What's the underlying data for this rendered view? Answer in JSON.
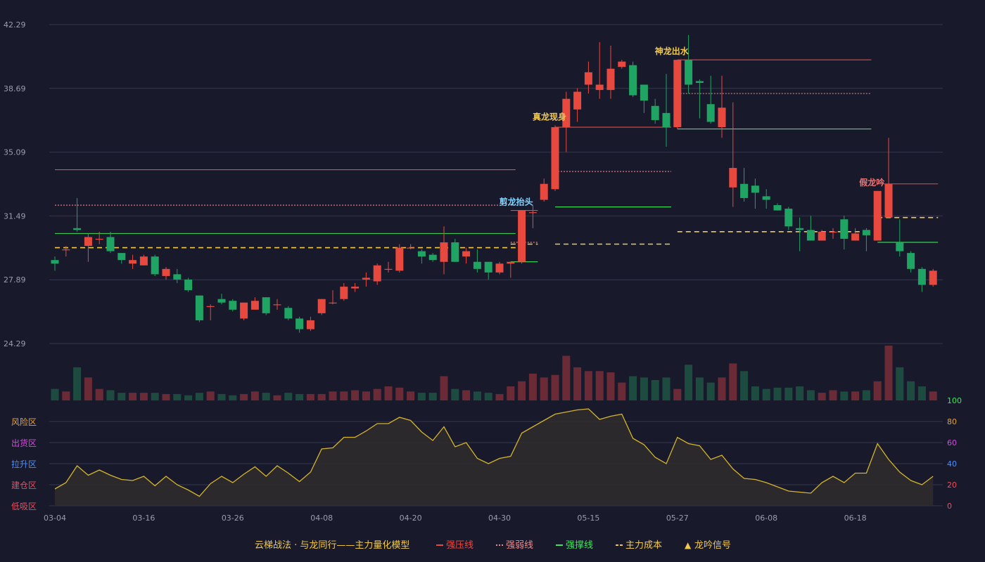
{
  "colors": {
    "background": "#181a2c",
    "up": "#e8493f",
    "down": "#1fa463",
    "up_volume": "#6b2b36",
    "down_volume": "#1e4b40",
    "grid": "#34374d",
    "axis_text": "#9a9db0",
    "resistance": "#e8493f",
    "weak": "#f08a8a",
    "support": "#3ee45a",
    "cost": "#f2c94c",
    "indicator": "#d4b52a",
    "indicator_fill": "#2f2b2c"
  },
  "legend": {
    "text": "云梯战法 · 与龙同行——主力量化模型",
    "items": [
      {
        "label": "强压线",
        "color": "#e8493f",
        "style": "solid"
      },
      {
        "label": "强弱线",
        "color": "#f08a8a",
        "style": "dotted"
      },
      {
        "label": "强撑线",
        "color": "#3ee45a",
        "style": "solid"
      },
      {
        "label": "主力成本",
        "color": "#f2c94c",
        "style": "dashed"
      },
      {
        "label": "龙吟信号",
        "color": "#f2c94c",
        "style": "triangle"
      }
    ]
  },
  "zones": [
    {
      "label": "风险区",
      "color": "#e6a23c"
    },
    {
      "label": "出货区",
      "color": "#d14dd8"
    },
    {
      "label": "拉升区",
      "color": "#4f8ff7"
    },
    {
      "label": "建仓区",
      "color": "#ee4c5a"
    },
    {
      "label": "低吸区",
      "color": "#ee4c5a"
    }
  ],
  "chart_data": {
    "type": "candlestick",
    "price_axis": {
      "ticks": [
        "42.29",
        "38.69",
        "35.09",
        "31.49",
        "27.89",
        "24.29"
      ],
      "min": 24.29,
      "max": 42.29
    },
    "indicator_axis": {
      "ticks": [
        "100",
        "80",
        "60",
        "40",
        "20",
        "0"
      ],
      "tick_colors": [
        "#3ee45a",
        "#e6a23c",
        "#d14dd8",
        "#4f8ff7",
        "#ee4c5a",
        "#ee4c5a"
      ],
      "min": 0,
      "max": 100
    },
    "x_labels": [
      {
        "index": 0,
        "label": "03-04"
      },
      {
        "index": 8,
        "label": "03-16"
      },
      {
        "index": 16,
        "label": "03-26"
      },
      {
        "index": 24,
        "label": "04-08"
      },
      {
        "index": 32,
        "label": "04-20"
      },
      {
        "index": 40,
        "label": "04-30"
      },
      {
        "index": 48,
        "label": "05-15"
      },
      {
        "index": 56,
        "label": "05-27"
      },
      {
        "index": 64,
        "label": "06-08"
      },
      {
        "index": 72,
        "label": "06-18"
      }
    ],
    "candles": [
      [
        29.0,
        28.8,
        29.2,
        28.4
      ],
      [
        29.6,
        29.6,
        29.8,
        29.2
      ],
      [
        30.8,
        30.7,
        32.5,
        30.6
      ],
      [
        29.8,
        30.3,
        30.5,
        28.9
      ],
      [
        30.2,
        30.2,
        30.6,
        29.9
      ],
      [
        30.3,
        29.5,
        30.6,
        29.4
      ],
      [
        29.4,
        29.0,
        29.4,
        28.8
      ],
      [
        28.8,
        29.0,
        29.3,
        28.5
      ],
      [
        28.7,
        29.2,
        29.3,
        28.7
      ],
      [
        29.2,
        28.2,
        29.3,
        28.1
      ],
      [
        28.1,
        28.5,
        28.6,
        27.9
      ],
      [
        28.2,
        27.9,
        28.5,
        27.7
      ],
      [
        27.9,
        27.3,
        28.0,
        27.2
      ],
      [
        27.0,
        25.6,
        27.0,
        25.5
      ],
      [
        26.4,
        26.4,
        26.5,
        25.6
      ],
      [
        26.8,
        26.6,
        27.1,
        26.5
      ],
      [
        26.7,
        26.2,
        26.8,
        26.1
      ],
      [
        25.7,
        26.6,
        26.6,
        25.6
      ],
      [
        26.2,
        26.7,
        26.9,
        26.2
      ],
      [
        26.9,
        26.0,
        26.9,
        25.9
      ],
      [
        26.5,
        26.5,
        26.8,
        26.2
      ],
      [
        26.3,
        25.7,
        26.4,
        25.6
      ],
      [
        25.7,
        25.1,
        25.8,
        24.9
      ],
      [
        25.1,
        25.6,
        25.8,
        25.0
      ],
      [
        26.0,
        26.8,
        26.8,
        25.9
      ],
      [
        26.6,
        26.6,
        27.3,
        26.5
      ],
      [
        26.8,
        27.5,
        27.7,
        26.7
      ],
      [
        27.4,
        27.5,
        27.7,
        27.2
      ],
      [
        27.9,
        28.0,
        28.3,
        27.5
      ],
      [
        27.8,
        28.7,
        28.8,
        27.6
      ],
      [
        28.5,
        28.5,
        28.9,
        28.3
      ],
      [
        28.4,
        29.7,
        29.9,
        28.3
      ],
      [
        29.7,
        29.7,
        29.9,
        29.6
      ],
      [
        29.5,
        29.2,
        29.6,
        28.8
      ],
      [
        29.3,
        29.0,
        29.4,
        28.9
      ],
      [
        28.9,
        30.0,
        30.9,
        28.2
      ],
      [
        30.0,
        28.9,
        30.2,
        28.9
      ],
      [
        29.2,
        29.5,
        29.7,
        28.8
      ],
      [
        28.9,
        28.5,
        29.6,
        28.3
      ],
      [
        28.9,
        28.3,
        28.9,
        27.9
      ],
      [
        28.3,
        28.8,
        28.9,
        28.2
      ],
      [
        28.8,
        28.9,
        28.9,
        28.0
      ],
      [
        28.9,
        31.8,
        31.8,
        28.8
      ],
      [
        31.7,
        31.7,
        32.1,
        30.8
      ],
      [
        32.4,
        33.3,
        33.6,
        32.3
      ],
      [
        33.0,
        36.5,
        36.6,
        32.9
      ],
      [
        36.5,
        38.1,
        38.5,
        35.1
      ],
      [
        37.5,
        38.5,
        38.7,
        36.8
      ],
      [
        38.9,
        39.6,
        40.2,
        38.4
      ],
      [
        38.6,
        38.9,
        41.3,
        38.1
      ],
      [
        38.6,
        39.8,
        41.1,
        38.1
      ],
      [
        39.9,
        40.2,
        40.3,
        39.8
      ],
      [
        40.0,
        38.3,
        40.2,
        38.2
      ],
      [
        38.9,
        38.0,
        38.9,
        37.3
      ],
      [
        37.7,
        36.9,
        38.1,
        36.7
      ],
      [
        37.3,
        36.5,
        39.5,
        35.4
      ],
      [
        36.5,
        40.3,
        40.3,
        36.4
      ],
      [
        40.3,
        38.9,
        41.7,
        38.4
      ],
      [
        39.1,
        39.0,
        39.2,
        37.0
      ],
      [
        37.8,
        36.8,
        39.4,
        36.7
      ],
      [
        36.5,
        37.6,
        39.4,
        35.9
      ],
      [
        33.1,
        34.2,
        37.9,
        32.0
      ],
      [
        33.3,
        32.5,
        34.2,
        32.3
      ],
      [
        33.2,
        32.8,
        33.6,
        31.9
      ],
      [
        32.6,
        32.4,
        33.0,
        31.9
      ],
      [
        32.1,
        31.8,
        32.2,
        31.8
      ],
      [
        31.9,
        30.9,
        32.0,
        30.7
      ],
      [
        30.8,
        30.7,
        31.4,
        29.5
      ],
      [
        30.7,
        30.1,
        31.5,
        30.1
      ],
      [
        30.1,
        30.6,
        30.7,
        30.1
      ],
      [
        30.6,
        30.6,
        30.8,
        30.2
      ],
      [
        31.3,
        30.2,
        31.5,
        29.6
      ],
      [
        30.1,
        30.5,
        30.8,
        30.1
      ],
      [
        30.7,
        30.4,
        30.8,
        29.5
      ],
      [
        30.1,
        32.9,
        32.9,
        30.1
      ],
      [
        31.4,
        33.3,
        35.9,
        31.4
      ],
      [
        30.0,
        29.5,
        31.3,
        29.2
      ],
      [
        29.4,
        28.5,
        29.5,
        28.3
      ],
      [
        28.5,
        27.6,
        28.6,
        27.2
      ],
      [
        27.6,
        28.4,
        28.5,
        27.5
      ]
    ],
    "volume": [
      9,
      7,
      26,
      18,
      9,
      8,
      6,
      6,
      6,
      6,
      5,
      5,
      4,
      6,
      7,
      5,
      4,
      5,
      7,
      6,
      4,
      6,
      5,
      5,
      5,
      7,
      7,
      8,
      7,
      9,
      11,
      10,
      7,
      6,
      6,
      19,
      9,
      8,
      7,
      6,
      5,
      11,
      15,
      21,
      18,
      20,
      35,
      26,
      23,
      23,
      22,
      14,
      19,
      18,
      16,
      18,
      9,
      28,
      18,
      14,
      18,
      29,
      23,
      11,
      9,
      10,
      10,
      11,
      8,
      6,
      8,
      7,
      7,
      8,
      15,
      43,
      26,
      15,
      11,
      7
    ],
    "indicator": [
      16,
      22,
      38,
      29,
      34,
      29,
      25,
      24,
      28,
      19,
      28,
      20,
      15,
      9,
      21,
      28,
      22,
      30,
      37,
      28,
      38,
      31,
      23,
      32,
      54,
      55,
      65,
      65,
      71,
      78,
      78,
      84,
      81,
      70,
      62,
      75,
      56,
      60,
      45,
      40,
      45,
      47,
      69,
      75,
      81,
      87,
      89,
      91,
      92,
      82,
      85,
      87,
      64,
      58,
      46,
      40,
      65,
      59,
      57,
      44,
      48,
      35,
      26,
      25,
      22,
      18,
      14,
      13,
      12,
      22,
      28,
      22,
      31,
      31,
      59,
      44,
      32,
      24,
      20,
      28
    ],
    "lines": [
      {
        "type": "resistance",
        "style": "solid",
        "from": 0,
        "to": 41,
        "value": 34.1
      },
      {
        "type": "weak",
        "style": "dotted",
        "from": 0,
        "to": 41,
        "value": 32.1
      },
      {
        "type": "support",
        "style": "solid",
        "from": 0,
        "to": 41,
        "value": 30.5
      },
      {
        "type": "cost",
        "style": "dashed",
        "from": 0,
        "to": 41,
        "value": 29.7
      },
      {
        "type": "resistance",
        "style": "solid",
        "from": 41,
        "to": 43,
        "value": 31.8
      },
      {
        "type": "weak",
        "style": "dotted",
        "from": 41,
        "to": 43,
        "value": 30.0
      },
      {
        "type": "support",
        "style": "solid",
        "from": 41,
        "to": 43,
        "value": 28.9
      },
      {
        "type": "cost",
        "style": "dashed",
        "from": 41,
        "to": 43,
        "value": 29.9
      },
      {
        "type": "resistance",
        "style": "solid",
        "from": 45,
        "to": 55,
        "value": 36.5
      },
      {
        "type": "weak",
        "style": "dotted",
        "from": 45,
        "to": 55,
        "value": 34.0
      },
      {
        "type": "support",
        "style": "solid",
        "from": 45,
        "to": 55,
        "value": 32.0
      },
      {
        "type": "cost",
        "style": "dashed",
        "from": 45,
        "to": 55,
        "value": 29.9
      },
      {
        "type": "resistance",
        "style": "solid",
        "from": 56,
        "to": 73,
        "value": 40.3
      },
      {
        "type": "weak",
        "style": "dotted",
        "from": 56,
        "to": 73,
        "value": 38.4
      },
      {
        "type": "support",
        "style": "solid",
        "from": 56,
        "to": 73,
        "value": 36.4
      },
      {
        "type": "cost",
        "style": "dashed",
        "from": 56,
        "to": 73,
        "value": 30.6
      },
      {
        "type": "resistance",
        "style": "solid",
        "from": 74,
        "to": 79,
        "value": 33.3
      },
      {
        "type": "support",
        "style": "solid",
        "from": 74,
        "to": 79,
        "value": 30.0
      },
      {
        "type": "cost",
        "style": "dashed",
        "from": 74,
        "to": 79,
        "value": 31.4
      }
    ],
    "signals": [
      {
        "index": 42,
        "label": "剪龙抬头",
        "color": "#7fd4ff"
      },
      {
        "index": 45,
        "label": "真龙现身",
        "color": "#f2c94c"
      },
      {
        "index": 56,
        "label": "神龙出水",
        "color": "#f2c94c"
      },
      {
        "index": 74,
        "label": "假龙吟",
        "color": "#f07070"
      }
    ]
  }
}
